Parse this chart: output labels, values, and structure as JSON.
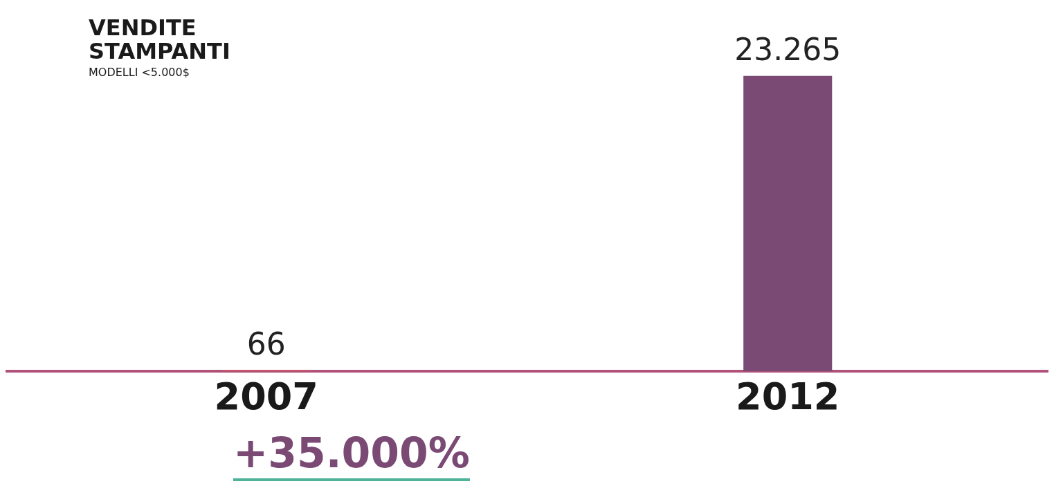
{
  "chart_data": {
    "type": "bar",
    "title": "VENDITE STAMPANTI",
    "subtitle": "MODELLI <5.000$",
    "categories": [
      "2007",
      "2012"
    ],
    "values": [
      66,
      23265
    ],
    "colors": [
      "#e05a5a",
      "#7a4a75"
    ],
    "value_labels": [
      "66",
      "23.265"
    ],
    "annotations": [
      "+35.000%"
    ],
    "grid": false,
    "legend": false
  }
}
